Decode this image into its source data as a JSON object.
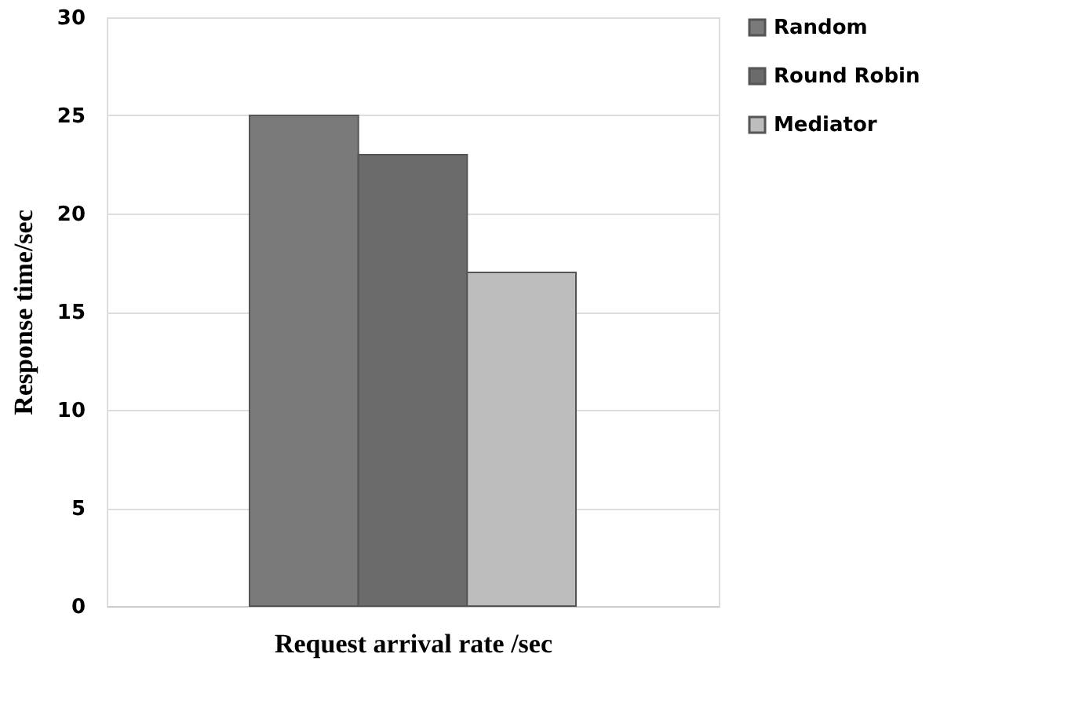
{
  "chart_data": {
    "type": "bar",
    "xlabel": "Request arrival  rate /sec",
    "ylabel": "Response time/sec",
    "categories": [
      null
    ],
    "series": [
      {
        "name": "Random",
        "color": "#7a7a7a",
        "values": [
          25
        ]
      },
      {
        "name": "Round Robin",
        "color": "#6b6b6b",
        "values": [
          23
        ]
      },
      {
        "name": "Mediator",
        "color": "#bdbdbd",
        "values": [
          17
        ]
      }
    ],
    "ylim": [
      0,
      30
    ],
    "yticks": [
      0,
      5,
      10,
      15,
      20,
      25,
      30
    ],
    "grid": "y",
    "legend": "top right"
  }
}
